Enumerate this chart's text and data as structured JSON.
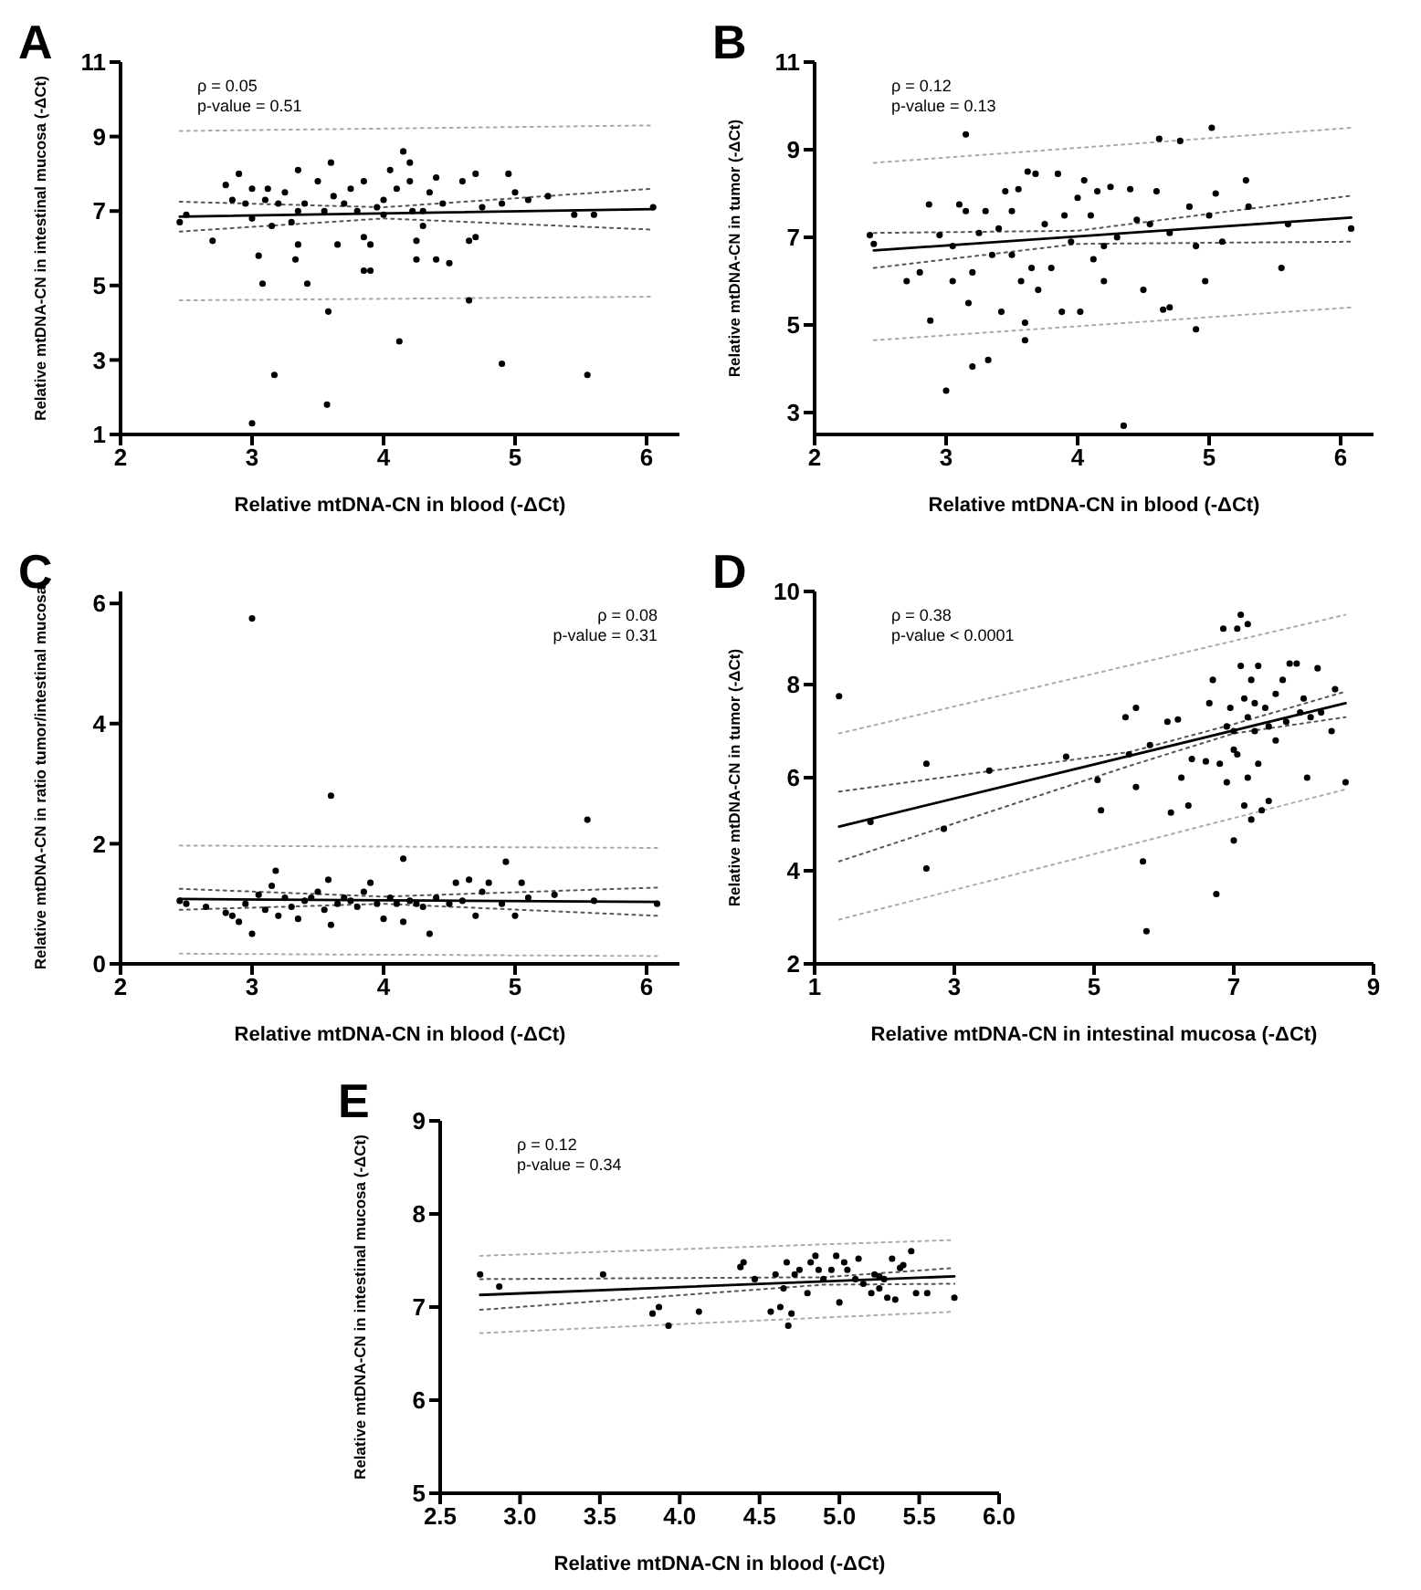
{
  "chart_data": [
    {
      "type": "scatter",
      "title": "A",
      "xlabel": "Relative mtDNA-CN in blood (-ΔCt)",
      "ylabel": "Relative mtDNA-CN in intestinal mucosa (-ΔCt)",
      "annotations": [
        "ρ = 0.05",
        "p-value = 0.51"
      ],
      "xlim": [
        2,
        6.25
      ],
      "xticks": [
        2,
        3,
        4,
        5,
        6
      ],
      "ylim": [
        1,
        11
      ],
      "yticks": [
        1,
        3,
        5,
        7,
        9,
        11
      ],
      "grid": false,
      "legend": false,
      "series": [
        {
          "type": "scatter",
          "marker": "circle",
          "color": "#000000",
          "x": [
            2.45,
            2.5,
            2.7,
            2.8,
            2.85,
            2.9,
            2.95,
            3.0,
            3.0,
            3.05,
            3.08,
            3.1,
            3.12,
            3.15,
            3.2,
            3.25,
            3.3,
            3.35,
            3.35,
            3.33,
            3.4,
            3.42,
            3.5,
            3.55,
            3.6,
            3.62,
            3.65,
            3.7,
            3.75,
            3.8,
            3.85,
            3.85,
            3.85,
            3.9,
            3.9,
            3.95,
            4.0,
            4.05,
            4.1,
            4.15,
            4.2,
            4.2,
            4.22,
            4.25,
            4.25,
            4.3,
            4.35,
            4.4,
            4.4,
            4.45,
            4.5,
            4.6,
            4.65,
            4.7,
            4.7,
            4.75,
            4.9,
            4.95,
            5.0,
            5.1,
            5.25,
            5.45,
            5.6,
            6.05,
            3.0,
            3.17,
            3.57,
            3.58,
            4.12,
            4.65,
            4.9,
            5.55,
            3.35,
            4.0,
            4.3
          ],
          "values": [
            6.7,
            6.9,
            6.2,
            7.7,
            7.3,
            8.0,
            7.2,
            7.6,
            6.8,
            5.8,
            5.05,
            7.3,
            7.6,
            6.6,
            7.2,
            7.5,
            6.7,
            8.1,
            6.1,
            5.7,
            7.2,
            5.05,
            7.8,
            7.0,
            8.3,
            7.4,
            6.1,
            7.2,
            7.6,
            7.0,
            7.8,
            6.3,
            5.4,
            5.4,
            6.1,
            7.1,
            7.3,
            8.1,
            7.6,
            8.6,
            8.3,
            7.8,
            7.0,
            6.2,
            5.7,
            6.6,
            7.5,
            7.9,
            5.7,
            7.2,
            5.6,
            7.8,
            6.2,
            6.3,
            8.0,
            7.1,
            7.2,
            8.0,
            7.5,
            7.3,
            7.4,
            6.9,
            6.9,
            7.1,
            1.3,
            2.6,
            1.8,
            4.3,
            3.5,
            4.6,
            2.9,
            2.6,
            7.0,
            6.9,
            7.0
          ]
        },
        {
          "type": "line",
          "marker": "none",
          "line_style": "solid",
          "color": "#000000",
          "x": [
            2.45,
            6.05
          ],
          "values": [
            6.85,
            7.05
          ]
        },
        {
          "type": "line",
          "marker": "none",
          "line_style": "dotted",
          "color": "#555555",
          "x": [
            2.45,
            4.0,
            6.05
          ],
          "values": [
            7.25,
            7.1,
            7.6
          ]
        },
        {
          "type": "line",
          "marker": "none",
          "line_style": "dotted",
          "color": "#555555",
          "x": [
            2.45,
            4.0,
            6.05
          ],
          "values": [
            6.45,
            6.8,
            6.5
          ]
        },
        {
          "type": "line",
          "marker": "none",
          "line_style": "dotted",
          "color": "#aaaaaa",
          "x": [
            2.45,
            6.05
          ],
          "values": [
            9.15,
            9.3
          ]
        },
        {
          "type": "line",
          "marker": "none",
          "line_style": "dotted",
          "color": "#aaaaaa",
          "x": [
            2.45,
            6.05
          ],
          "values": [
            4.6,
            4.7
          ]
        }
      ]
    },
    {
      "type": "scatter",
      "title": "B",
      "xlabel": "Relative mtDNA-CN in blood (-ΔCt)",
      "ylabel": "Relative mtDNA-CN in tumor (-ΔCt)",
      "annotations": [
        "ρ = 0.12",
        "p-value = 0.13"
      ],
      "xlim": [
        2,
        6.25
      ],
      "xticks": [
        2,
        3,
        4,
        5,
        6
      ],
      "ylim": [
        2.5,
        11
      ],
      "yticks": [
        3,
        5,
        7,
        9,
        11
      ],
      "grid": false,
      "legend": false,
      "series": [
        {
          "type": "scatter",
          "marker": "circle",
          "color": "#000000",
          "x": [
            2.42,
            2.45,
            2.7,
            2.8,
            2.87,
            2.88,
            2.95,
            3.0,
            3.05,
            3.05,
            3.1,
            3.15,
            3.15,
            3.17,
            3.2,
            3.2,
            3.25,
            3.3,
            3.32,
            3.35,
            3.4,
            3.42,
            3.45,
            3.5,
            3.55,
            3.57,
            3.6,
            3.6,
            3.62,
            3.65,
            3.68,
            3.7,
            3.75,
            3.8,
            3.85,
            3.88,
            3.9,
            3.95,
            4.0,
            4.02,
            4.05,
            4.1,
            4.12,
            4.15,
            4.2,
            4.25,
            4.3,
            4.35,
            4.4,
            4.45,
            4.5,
            4.55,
            4.6,
            4.62,
            4.65,
            4.7,
            4.7,
            4.78,
            4.85,
            4.9,
            4.9,
            4.97,
            5.0,
            5.02,
            5.05,
            5.1,
            5.28,
            5.3,
            5.55,
            5.6,
            6.08,
            4.2,
            3.5
          ],
          "values": [
            7.05,
            6.85,
            6.0,
            6.2,
            7.75,
            5.1,
            7.05,
            3.5,
            6.8,
            6.0,
            7.75,
            9.35,
            7.6,
            5.5,
            4.05,
            6.2,
            7.1,
            7.6,
            4.2,
            6.6,
            7.2,
            5.3,
            8.05,
            7.6,
            8.1,
            6.0,
            5.05,
            4.65,
            8.5,
            6.3,
            8.45,
            5.8,
            7.3,
            6.3,
            8.45,
            5.3,
            7.5,
            6.9,
            7.9,
            5.3,
            8.3,
            7.5,
            6.5,
            8.05,
            6.0,
            8.15,
            7.0,
            2.7,
            8.1,
            7.4,
            5.8,
            7.3,
            8.05,
            9.25,
            5.35,
            5.4,
            7.1,
            9.2,
            7.7,
            6.8,
            4.9,
            6.0,
            7.5,
            9.5,
            8.0,
            6.9,
            8.3,
            7.7,
            6.3,
            7.3,
            7.2,
            6.8,
            6.6
          ]
        },
        {
          "type": "line",
          "marker": "none",
          "line_style": "solid",
          "color": "#000000",
          "x": [
            2.45,
            6.08
          ],
          "values": [
            6.7,
            7.45
          ]
        },
        {
          "type": "line",
          "marker": "none",
          "line_style": "dotted",
          "color": "#555555",
          "x": [
            2.45,
            4.0,
            6.08
          ],
          "values": [
            7.1,
            7.15,
            7.95
          ]
        },
        {
          "type": "line",
          "marker": "none",
          "line_style": "dotted",
          "color": "#555555",
          "x": [
            2.45,
            4.0,
            6.08
          ],
          "values": [
            6.3,
            6.85,
            6.9
          ]
        },
        {
          "type": "line",
          "marker": "none",
          "line_style": "dotted",
          "color": "#aaaaaa",
          "x": [
            2.45,
            6.08
          ],
          "values": [
            8.7,
            9.5
          ]
        },
        {
          "type": "line",
          "marker": "none",
          "line_style": "dotted",
          "color": "#aaaaaa",
          "x": [
            2.45,
            6.08
          ],
          "values": [
            4.65,
            5.4
          ]
        }
      ]
    },
    {
      "type": "scatter",
      "title": "C",
      "xlabel": "Relative mtDNA-CN in blood (-ΔCt)",
      "ylabel": "Relative mtDNA-CN in ratio tumor/intestinal mucosa",
      "annotations": [
        "ρ = 0.08",
        "p-value = 0.31"
      ],
      "xlim": [
        2,
        6.25
      ],
      "xticks": [
        2,
        3,
        4,
        5,
        6
      ],
      "ylim": [
        0,
        6.2
      ],
      "yticks": [
        0,
        2,
        4,
        6
      ],
      "grid": false,
      "legend": false,
      "series": [
        {
          "type": "scatter",
          "marker": "circle",
          "color": "#000000",
          "x": [
            2.45,
            2.5,
            2.65,
            2.8,
            2.85,
            2.9,
            2.95,
            3.0,
            3.0,
            3.05,
            3.1,
            3.15,
            3.18,
            3.2,
            3.25,
            3.3,
            3.35,
            3.4,
            3.45,
            3.5,
            3.55,
            3.58,
            3.6,
            3.6,
            3.65,
            3.7,
            3.8,
            3.85,
            3.9,
            3.95,
            4.0,
            4.05,
            4.1,
            4.15,
            4.15,
            4.2,
            4.3,
            4.35,
            4.4,
            4.5,
            4.55,
            4.6,
            4.65,
            4.7,
            4.75,
            4.8,
            4.9,
            4.93,
            5.0,
            5.05,
            5.1,
            5.3,
            5.55,
            5.6,
            6.08,
            3.75,
            4.25
          ],
          "values": [
            1.05,
            1.0,
            0.95,
            0.85,
            0.8,
            0.7,
            1.0,
            5.75,
            0.5,
            1.15,
            0.9,
            1.3,
            1.55,
            0.8,
            1.1,
            0.95,
            0.75,
            1.05,
            1.1,
            1.2,
            0.9,
            1.4,
            2.8,
            0.65,
            1.0,
            1.1,
            0.95,
            1.2,
            1.35,
            1.0,
            0.75,
            1.1,
            1.0,
            1.75,
            0.7,
            1.05,
            0.95,
            0.5,
            1.1,
            1.0,
            1.35,
            1.05,
            1.4,
            0.8,
            1.2,
            1.35,
            1.0,
            1.7,
            0.8,
            1.35,
            1.1,
            1.15,
            2.4,
            1.05,
            1.0,
            1.05,
            1.0
          ]
        },
        {
          "type": "line",
          "marker": "none",
          "line_style": "solid",
          "color": "#000000",
          "x": [
            2.45,
            6.08
          ],
          "values": [
            1.08,
            1.03
          ]
        },
        {
          "type": "line",
          "marker": "none",
          "line_style": "dotted",
          "color": "#555555",
          "x": [
            2.45,
            4.0,
            6.08
          ],
          "values": [
            1.25,
            1.12,
            1.27
          ]
        },
        {
          "type": "line",
          "marker": "none",
          "line_style": "dotted",
          "color": "#555555",
          "x": [
            2.45,
            4.0,
            6.08
          ],
          "values": [
            0.9,
            1.0,
            0.8
          ]
        },
        {
          "type": "line",
          "marker": "none",
          "line_style": "dotted",
          "color": "#aaaaaa",
          "x": [
            2.45,
            6.08
          ],
          "values": [
            1.97,
            1.93
          ]
        },
        {
          "type": "line",
          "marker": "none",
          "line_style": "dotted",
          "color": "#aaaaaa",
          "x": [
            2.45,
            6.08
          ],
          "values": [
            0.17,
            0.13
          ]
        }
      ]
    },
    {
      "type": "scatter",
      "title": "D",
      "xlabel": "Relative mtDNA-CN in intestinal mucosa (-ΔCt)",
      "ylabel": "Relative mtDNA-CN in tumor (-ΔCt)",
      "annotations": [
        "ρ = 0.38",
        "p-value < 0.0001"
      ],
      "xlim": [
        1,
        9
      ],
      "xticks": [
        1,
        3,
        5,
        7,
        9
      ],
      "ylim": [
        2,
        10
      ],
      "yticks": [
        2,
        4,
        6,
        8,
        10
      ],
      "grid": false,
      "legend": false,
      "series": [
        {
          "type": "scatter",
          "marker": "circle",
          "color": "#000000",
          "x": [
            1.35,
            1.8,
            2.6,
            2.6,
            2.85,
            3.5,
            4.6,
            5.05,
            5.1,
            5.45,
            5.5,
            5.6,
            5.6,
            5.7,
            5.75,
            5.8,
            6.05,
            6.1,
            6.2,
            6.25,
            6.35,
            6.4,
            6.6,
            6.65,
            6.7,
            6.75,
            6.8,
            6.85,
            6.9,
            6.95,
            7.0,
            7.0,
            7.05,
            7.05,
            7.1,
            7.1,
            7.15,
            7.15,
            7.2,
            7.2,
            7.2,
            7.25,
            7.25,
            7.3,
            7.35,
            7.35,
            7.4,
            7.45,
            7.5,
            7.5,
            7.6,
            7.7,
            7.75,
            7.8,
            7.9,
            7.95,
            8.0,
            8.05,
            8.1,
            8.2,
            8.25,
            8.4,
            8.45,
            8.6,
            7.0,
            7.3,
            6.9,
            7.6
          ],
          "values": [
            7.75,
            5.05,
            6.3,
            4.05,
            4.9,
            6.15,
            6.45,
            5.95,
            5.3,
            7.3,
            6.5,
            7.5,
            5.8,
            4.2,
            2.7,
            6.7,
            7.2,
            5.25,
            7.25,
            6.0,
            5.4,
            6.4,
            6.35,
            7.6,
            8.1,
            3.5,
            6.3,
            9.2,
            5.9,
            7.5,
            7.0,
            4.65,
            9.2,
            6.5,
            9.5,
            8.4,
            7.7,
            5.4,
            9.3,
            7.3,
            6.0,
            8.1,
            5.1,
            7.0,
            8.4,
            6.3,
            5.3,
            7.5,
            5.5,
            7.1,
            7.8,
            8.1,
            7.2,
            8.45,
            8.45,
            7.4,
            7.7,
            6.0,
            7.3,
            8.35,
            7.4,
            7.0,
            7.9,
            5.9,
            6.6,
            7.6,
            7.1,
            6.8
          ]
        },
        {
          "type": "line",
          "marker": "none",
          "line_style": "solid",
          "color": "#000000",
          "x": [
            1.35,
            8.6
          ],
          "values": [
            4.95,
            7.6
          ]
        },
        {
          "type": "line",
          "marker": "none",
          "line_style": "dotted",
          "color": "#555555",
          "x": [
            1.35,
            5.5,
            7.0,
            8.6
          ],
          "values": [
            5.7,
            6.55,
            7.15,
            7.85
          ]
        },
        {
          "type": "line",
          "marker": "none",
          "line_style": "dotted",
          "color": "#555555",
          "x": [
            1.35,
            5.5,
            7.0,
            8.6
          ],
          "values": [
            4.2,
            6.25,
            6.95,
            7.3
          ]
        },
        {
          "type": "line",
          "marker": "none",
          "line_style": "dotted",
          "color": "#aaaaaa",
          "x": [
            1.35,
            8.6
          ],
          "values": [
            6.95,
            9.5
          ]
        },
        {
          "type": "line",
          "marker": "none",
          "line_style": "dotted",
          "color": "#aaaaaa",
          "x": [
            1.35,
            8.6
          ],
          "values": [
            2.95,
            5.75
          ]
        }
      ]
    },
    {
      "type": "scatter",
      "title": "E",
      "xlabel": "Relative mtDNA-CN in blood (-ΔCt)",
      "ylabel": "Relative mtDNA-CN in intestinal mucosa (-ΔCt)",
      "annotations": [
        "ρ = 0.12",
        "p-value = 0.34"
      ],
      "xlim": [
        2.5,
        6
      ],
      "xticks": [
        {
          "value": 2.5,
          "label": "2.5"
        },
        {
          "value": 3,
          "label": "3.0"
        },
        {
          "value": 3.5,
          "label": "3.5"
        },
        {
          "value": 4,
          "label": "4.0"
        },
        {
          "value": 4.5,
          "label": "4.5"
        },
        {
          "value": 5,
          "label": "5.0"
        },
        {
          "value": 5.5,
          "label": "5.5"
        },
        {
          "value": 6,
          "label": "6.0"
        }
      ],
      "ylim": [
        5,
        9
      ],
      "yticks": [
        5,
        6,
        7,
        8,
        9
      ],
      "grid": false,
      "legend": false,
      "series": [
        {
          "type": "scatter",
          "marker": "circle",
          "color": "#000000",
          "x": [
            2.75,
            2.87,
            3.52,
            3.83,
            3.87,
            3.93,
            4.12,
            4.38,
            4.4,
            4.47,
            4.57,
            4.6,
            4.63,
            4.65,
            4.67,
            4.68,
            4.7,
            4.72,
            4.75,
            4.8,
            4.82,
            4.85,
            4.87,
            4.9,
            4.95,
            4.98,
            5.0,
            5.03,
            5.05,
            5.1,
            5.12,
            5.15,
            5.2,
            5.22,
            5.25,
            5.28,
            5.3,
            5.33,
            5.35,
            5.38,
            5.4,
            5.45,
            5.48,
            5.55,
            5.72,
            5.25
          ],
          "values": [
            7.35,
            7.22,
            7.35,
            6.93,
            7.0,
            6.8,
            6.95,
            7.43,
            7.48,
            7.3,
            6.95,
            7.35,
            7.0,
            7.2,
            7.48,
            6.8,
            6.93,
            7.35,
            7.4,
            7.15,
            7.48,
            7.55,
            7.4,
            7.3,
            7.4,
            7.55,
            7.05,
            7.48,
            7.4,
            7.3,
            7.52,
            7.25,
            7.15,
            7.35,
            7.2,
            7.3,
            7.1,
            7.52,
            7.08,
            7.42,
            7.45,
            7.6,
            7.15,
            7.15,
            7.1,
            7.33
          ]
        },
        {
          "type": "line",
          "marker": "none",
          "line_style": "solid",
          "color": "#000000",
          "x": [
            2.75,
            5.72
          ],
          "values": [
            7.13,
            7.33
          ]
        },
        {
          "type": "line",
          "marker": "none",
          "line_style": "dotted",
          "color": "#555555",
          "x": [
            2.75,
            4.9,
            5.72
          ],
          "values": [
            7.3,
            7.32,
            7.42
          ]
        },
        {
          "type": "line",
          "marker": "none",
          "line_style": "dotted",
          "color": "#555555",
          "x": [
            2.75,
            4.9,
            5.72
          ],
          "values": [
            6.97,
            7.24,
            7.25
          ]
        },
        {
          "type": "line",
          "marker": "none",
          "line_style": "dotted",
          "color": "#aaaaaa",
          "x": [
            2.75,
            5.72
          ],
          "values": [
            7.55,
            7.72
          ]
        },
        {
          "type": "line",
          "marker": "none",
          "line_style": "dotted",
          "color": "#aaaaaa",
          "x": [
            2.75,
            5.72
          ],
          "values": [
            6.72,
            6.95
          ]
        }
      ]
    }
  ]
}
